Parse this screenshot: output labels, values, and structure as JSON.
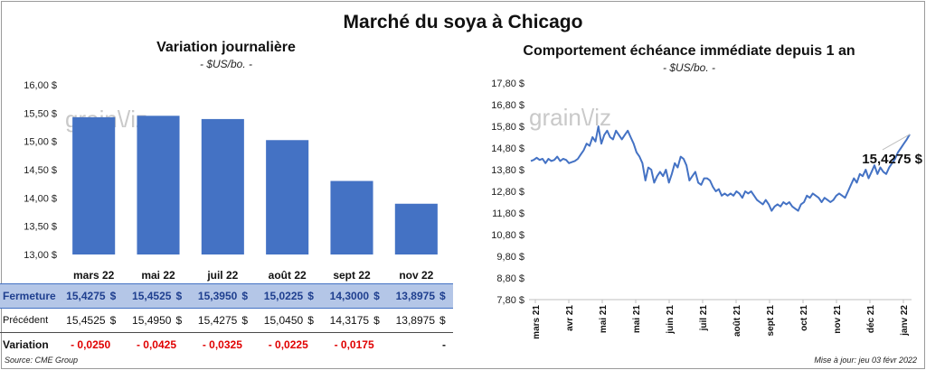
{
  "title": "Marché du soya à Chicago",
  "source": "Source: CME Group",
  "updated": "Mise à jour: jeu 03 févr 2022",
  "watermark": "grain\\/iz",
  "colors": {
    "bar": "#4472c4",
    "line": "#4472c4",
    "table_highlight": "#b4c6e7",
    "negative": "#e00000"
  },
  "chart_data": [
    {
      "type": "bar",
      "title": "Variation journalière",
      "subtitle": "- $US/bo. -",
      "categories": [
        "mars 22",
        "mai 22",
        "juil 22",
        "août 22",
        "sept 22",
        "nov 22"
      ],
      "values": [
        15.4275,
        15.4525,
        15.395,
        15.0225,
        14.3,
        13.8975
      ],
      "ylim": [
        13.0,
        16.0
      ],
      "yticks": [
        "16,00 $",
        "15,50 $",
        "15,00 $",
        "14,50 $",
        "14,00 $",
        "13,50 $",
        "13,00 $"
      ],
      "grid": false,
      "table": {
        "rows": [
          {
            "label": "Fermeture",
            "values": [
              "15,4275",
              "15,4525",
              "15,3950",
              "15,0225",
              "14,3000",
              "13,8975"
            ],
            "unit": "$"
          },
          {
            "label": "Précédent",
            "values": [
              "15,4525",
              "15,4950",
              "15,4275",
              "15,0450",
              "14,3175",
              "13,8975"
            ],
            "unit": "$"
          },
          {
            "label": "Variation",
            "values": [
              "- 0,0250",
              "- 0,0425",
              "- 0,0325",
              "- 0,0225",
              "- 0,0175",
              "-"
            ]
          }
        ]
      }
    },
    {
      "type": "line",
      "title": "Comportement échéance immédiate depuis 1 an",
      "subtitle": "- $US/bo. -",
      "ylim": [
        7.8,
        17.8
      ],
      "yticks": [
        "17,80 $",
        "16,80 $",
        "15,80 $",
        "14,80 $",
        "13,80 $",
        "12,80 $",
        "11,80 $",
        "10,80 $",
        "9,80 $",
        "8,80 $",
        "7,80 $"
      ],
      "xticks": [
        "mars 21",
        "avr 21",
        "mai 21",
        "mai 21",
        "juin 21",
        "juil 21",
        "août 21",
        "sept 21",
        "oct 21",
        "nov 21",
        "déc 21",
        "janv 22"
      ],
      "last_value_label": "15,4275 $",
      "x_range": [
        0,
        11
      ],
      "values": [
        14.2,
        14.25,
        14.35,
        14.25,
        14.3,
        14.1,
        14.3,
        14.2,
        14.25,
        14.4,
        14.2,
        14.3,
        14.25,
        14.1,
        14.15,
        14.2,
        14.3,
        14.5,
        14.7,
        15.0,
        14.9,
        15.3,
        15.1,
        15.8,
        15.0,
        15.4,
        15.6,
        15.3,
        15.2,
        15.6,
        15.4,
        15.2,
        15.4,
        15.6,
        15.3,
        15.0,
        14.6,
        14.4,
        14.1,
        13.3,
        13.9,
        13.8,
        13.2,
        13.5,
        13.7,
        13.5,
        13.8,
        13.2,
        13.6,
        14.1,
        13.9,
        14.4,
        14.3,
        14.0,
        13.3,
        13.5,
        13.7,
        13.2,
        13.1,
        13.4,
        13.4,
        13.3,
        13.0,
        12.8,
        12.9,
        12.6,
        12.7,
        12.6,
        12.7,
        12.6,
        12.8,
        12.7,
        12.5,
        12.8,
        12.7,
        12.8,
        12.6,
        12.4,
        12.3,
        12.2,
        12.4,
        12.2,
        11.9,
        12.1,
        12.2,
        12.1,
        12.3,
        12.2,
        12.3,
        12.1,
        12.0,
        11.9,
        12.2,
        12.3,
        12.6,
        12.5,
        12.7,
        12.6,
        12.5,
        12.3,
        12.5,
        12.4,
        12.3,
        12.4,
        12.6,
        12.7,
        12.6,
        12.5,
        12.8,
        13.1,
        13.4,
        13.2,
        13.6,
        13.5,
        13.8,
        13.4,
        13.7,
        14.0,
        13.6,
        13.9,
        13.7,
        13.6,
        13.9,
        14.1,
        14.3,
        14.6,
        14.8,
        15.0,
        15.2,
        15.4275
      ]
    }
  ]
}
